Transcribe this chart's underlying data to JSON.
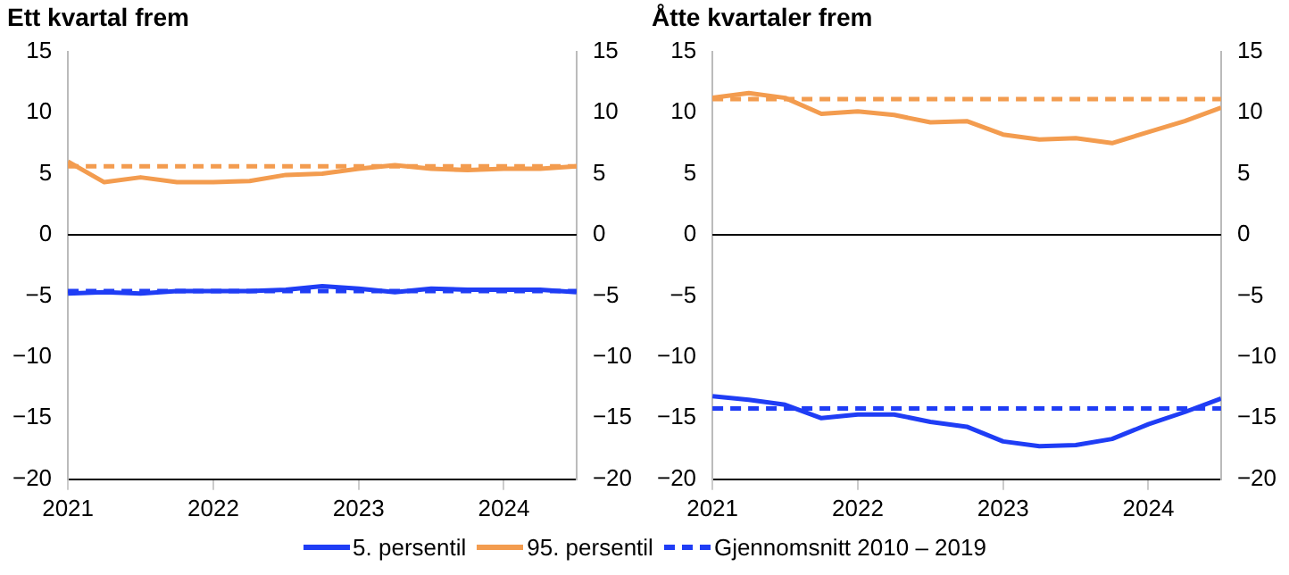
{
  "chart_data": [
    {
      "type": "line",
      "title": "Ett kvartal frem",
      "x": [
        2021,
        2021.25,
        2021.5,
        2021.75,
        2022,
        2022.25,
        2022.5,
        2022.75,
        2023,
        2023.25,
        2023.5,
        2023.75,
        2024,
        2024.25,
        2024.5
      ],
      "series": [
        {
          "name": "5. persentil",
          "color": "#1f3df5",
          "values": [
            -4.8,
            -4.7,
            -4.8,
            -4.6,
            -4.6,
            -4.6,
            -4.5,
            -4.2,
            -4.4,
            -4.7,
            -4.4,
            -4.5,
            -4.5,
            -4.5,
            -4.7
          ]
        },
        {
          "name": "95. persentil",
          "color": "#f39c4f",
          "values": [
            6.0,
            4.3,
            4.7,
            4.3,
            4.3,
            4.4,
            4.9,
            5.0,
            5.4,
            5.7,
            5.4,
            5.3,
            5.4,
            5.4,
            5.6
          ]
        }
      ],
      "ref_lines": [
        {
          "axis": "y",
          "value": -4.6,
          "color": "#1f3df5",
          "line_style": "dashed",
          "label": "Gjennomsnitt 2010 – 2019"
        },
        {
          "axis": "y",
          "value": 5.6,
          "color": "#f39c4f",
          "line_style": "dashed"
        },
        {
          "axis": "y",
          "value": 0,
          "color": "#000000",
          "line_style": "solid"
        }
      ],
      "xlim": [
        2021,
        2024.5
      ],
      "xticks": [
        2021,
        2022,
        2023,
        2024
      ],
      "ylim": [
        -20,
        15
      ],
      "yticks": [
        {
          "value": -20,
          "label": "−20"
        },
        {
          "value": -15,
          "label": "−15"
        },
        {
          "value": -10,
          "label": "−10"
        },
        {
          "value": -5,
          "label": "−5"
        },
        0,
        5,
        10,
        15
      ],
      "y2lim": [
        -20,
        15
      ],
      "y2ticks": [
        {
          "value": -20,
          "label": "−20"
        },
        {
          "value": -15,
          "label": "−15"
        },
        {
          "value": -10,
          "label": "−10"
        },
        {
          "value": -5,
          "label": "−5"
        },
        0,
        5,
        10,
        15
      ],
      "grid": false,
      "legend": "bottom",
      "marker": "none"
    },
    {
      "type": "line",
      "title": "Åtte kvartaler frem",
      "x": [
        2021,
        2021.25,
        2021.5,
        2021.75,
        2022,
        2022.25,
        2022.5,
        2022.75,
        2023,
        2023.25,
        2023.5,
        2023.75,
        2024,
        2024.25,
        2024.5
      ],
      "series": [
        {
          "color": "#1f3df5",
          "values": [
            -13.2,
            -13.5,
            -13.9,
            -15.0,
            -14.7,
            -14.7,
            -15.3,
            -15.7,
            -16.9,
            -17.3,
            -17.2,
            -16.7,
            -15.5,
            -14.5,
            -13.4
          ]
        },
        {
          "color": "#f39c4f",
          "values": [
            11.2,
            11.6,
            11.2,
            9.9,
            10.1,
            9.8,
            9.2,
            9.3,
            8.2,
            7.8,
            7.9,
            7.5,
            8.4,
            9.3,
            10.4
          ]
        }
      ],
      "ref_lines": [
        {
          "axis": "y",
          "value": -14.2,
          "color": "#1f3df5",
          "line_style": "dashed"
        },
        {
          "axis": "y",
          "value": 11.1,
          "color": "#f39c4f",
          "line_style": "dashed"
        },
        {
          "axis": "y",
          "value": 0,
          "color": "#000000",
          "line_style": "solid"
        }
      ],
      "xlim": [
        2021,
        2024.5
      ],
      "xticks": [
        2021,
        2022,
        2023,
        2024
      ],
      "ylim": [
        -20,
        15
      ],
      "yticks": [
        {
          "value": -20,
          "label": "−20"
        },
        {
          "value": -15,
          "label": "−15"
        },
        {
          "value": -10,
          "label": "−10"
        },
        {
          "value": -5,
          "label": "−5"
        },
        0,
        5,
        10,
        15
      ],
      "y2lim": [
        -20,
        15
      ],
      "y2ticks": [
        {
          "value": -20,
          "label": "−20"
        },
        {
          "value": -15,
          "label": "−15"
        },
        {
          "value": -10,
          "label": "−10"
        },
        {
          "value": -5,
          "label": "−5"
        },
        0,
        5,
        10,
        15
      ],
      "grid": false,
      "marker": "none"
    }
  ]
}
